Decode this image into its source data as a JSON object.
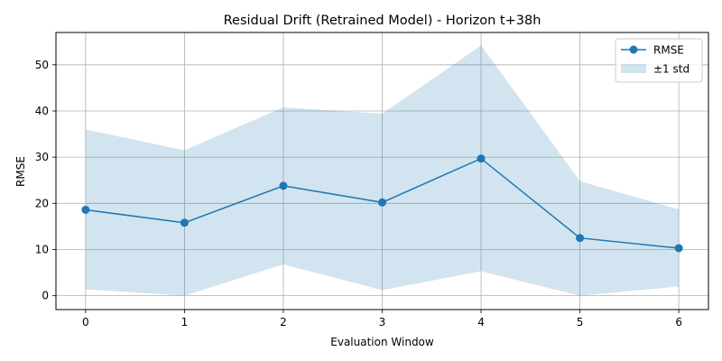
{
  "chart_data": {
    "type": "line",
    "title": "Residual Drift (Retrained Model) - Horizon t+38h",
    "xlabel": "Evaluation Window",
    "ylabel": "RMSE",
    "x": [
      0,
      1,
      2,
      3,
      4,
      5,
      6
    ],
    "xticks": [
      "0",
      "1",
      "2",
      "3",
      "4",
      "5",
      "6"
    ],
    "yticks": [
      "0",
      "10",
      "20",
      "30",
      "40",
      "50"
    ],
    "xlim": [
      -0.3,
      6.3
    ],
    "ylim": [
      -3,
      57
    ],
    "grid": true,
    "legend_position": "top-right",
    "series": [
      {
        "name": "RMSE",
        "values": [
          18.6,
          15.8,
          23.8,
          20.2,
          29.7,
          12.5,
          10.3
        ],
        "color": "#1f77b4"
      }
    ],
    "band": {
      "name": "±1 std",
      "lower": [
        1.4,
        0.0,
        6.8,
        1.2,
        5.3,
        0.0,
        2.0
      ],
      "upper": [
        36.0,
        31.5,
        40.8,
        39.4,
        54.2,
        24.8,
        18.7
      ],
      "color": "#1f77b4"
    }
  }
}
